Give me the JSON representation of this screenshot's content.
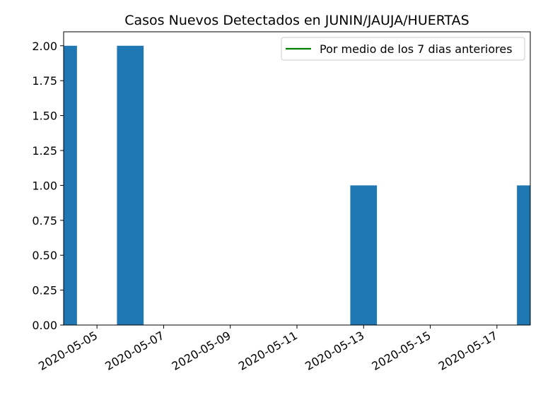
{
  "chart_data": {
    "type": "bar",
    "title": "Casos Nuevos Detectados en JUNIN/JAUJA/HUERTAS",
    "x": [
      "2020-05-04",
      "2020-05-06",
      "2020-05-13",
      "2020-05-18"
    ],
    "values": [
      2,
      2,
      1,
      1
    ],
    "color": "#1f77b4",
    "xlim": [
      "2020-05-04",
      "2020-05-18"
    ],
    "xticks": [
      "2020-05-05",
      "2020-05-07",
      "2020-05-09",
      "2020-05-11",
      "2020-05-13",
      "2020-05-15",
      "2020-05-17"
    ],
    "ylim": [
      0,
      2.1
    ],
    "yticks": [
      {
        "value": 0,
        "label": "0.00"
      },
      {
        "value": 0.25,
        "label": "0.25"
      },
      {
        "value": 0.5,
        "label": "0.50"
      },
      {
        "value": 0.75,
        "label": "0.75"
      },
      {
        "value": 1,
        "label": "1.00"
      },
      {
        "value": 1.25,
        "label": "1.25"
      },
      {
        "value": 1.5,
        "label": "1.50"
      },
      {
        "value": 1.75,
        "label": "1.75"
      },
      {
        "value": 2,
        "label": "2.00"
      }
    ],
    "legend": {
      "loc": "upper right",
      "entries": [
        {
          "name": "Por medio de los 7 dias anteriores",
          "color": "green"
        }
      ]
    }
  }
}
